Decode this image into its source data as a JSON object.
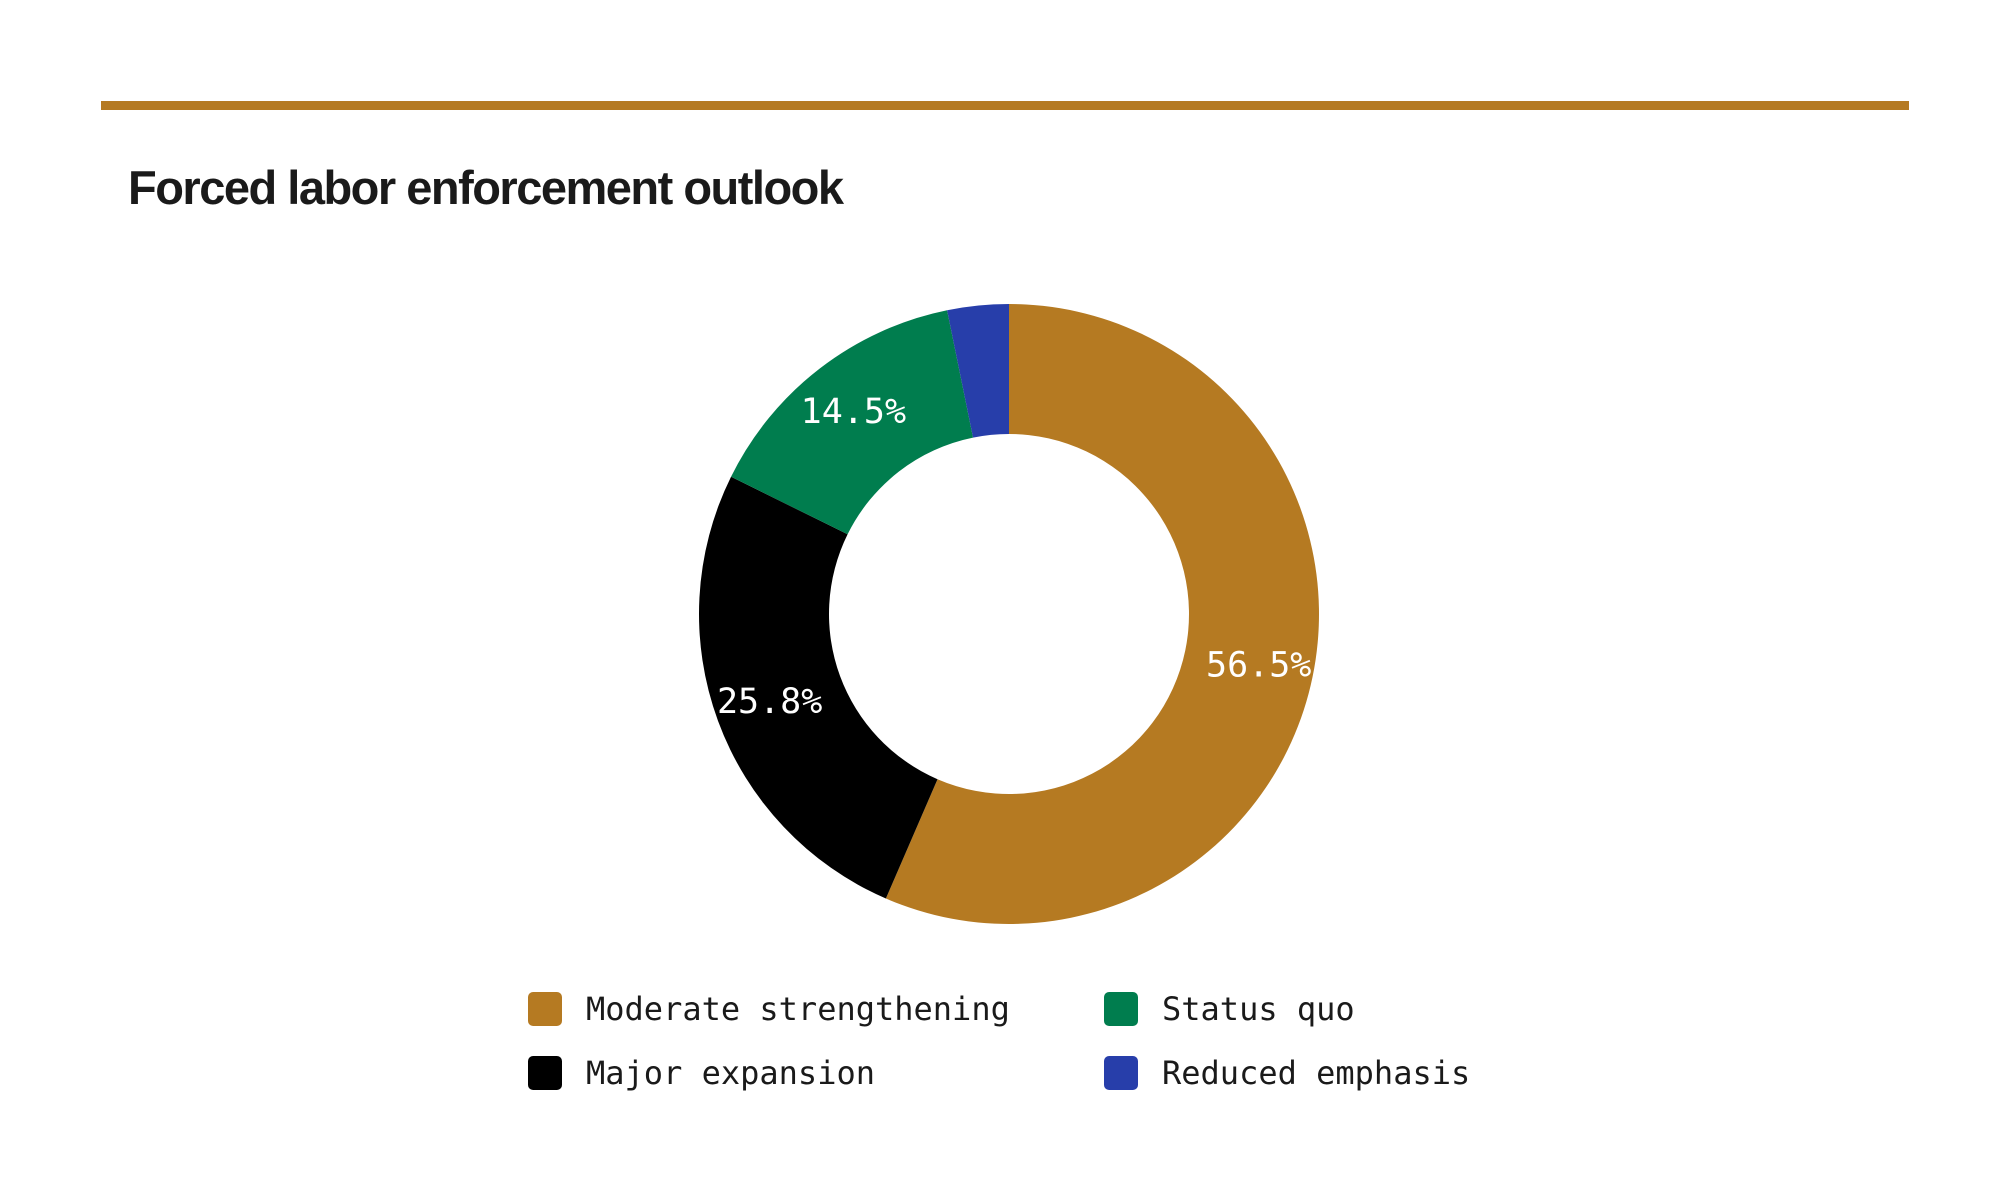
{
  "chart_data": {
    "type": "pie",
    "variant": "donut",
    "title": "Forced labor enforcement outlook",
    "series": [
      {
        "name": "Moderate strengthening",
        "value": 56.5,
        "label": "56.5%",
        "color": "#b57a22"
      },
      {
        "name": "Major expansion",
        "value": 25.8,
        "label": "25.8%",
        "color": "#000000"
      },
      {
        "name": "Status quo",
        "value": 14.5,
        "label": "14.5%",
        "color": "#007d4e"
      },
      {
        "name": "Reduced emphasis",
        "value": 3.2,
        "label": "",
        "color": "#273eaa"
      }
    ],
    "legend_position": "bottom",
    "legend_order": [
      0,
      2,
      1,
      3
    ]
  },
  "colors": {
    "accent_rule": "#b57a22",
    "title": "#1a1a1a"
  }
}
